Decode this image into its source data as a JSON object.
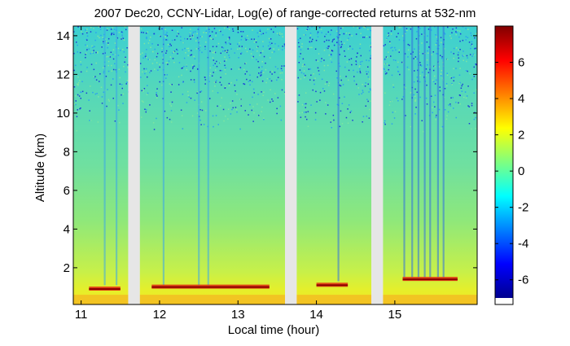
{
  "chart_data": {
    "type": "heatmap",
    "title": "2007 Dec20, CCNY-Lidar, Log(e) of range-corrected returns at 532-nm",
    "xlabel": "Local time (hour)",
    "ylabel": "Altitude (km)",
    "xlim": [
      10.9,
      16.05
    ],
    "ylim": [
      0.1,
      14.5
    ],
    "x_ticks": [
      "11",
      "12",
      "13",
      "14",
      "15"
    ],
    "x_tick_values": [
      11,
      12,
      13,
      14,
      15
    ],
    "y_ticks": [
      "2",
      "4",
      "6",
      "8",
      "10",
      "12",
      "14"
    ],
    "y_tick_values": [
      2,
      4,
      6,
      8,
      10,
      12,
      14
    ],
    "colorbar": {
      "colormap": "jet",
      "range": [
        -7,
        8
      ],
      "ticks": [
        "-6",
        "-4",
        "-2",
        "0",
        "2",
        "4",
        "6"
      ],
      "tick_values": [
        -6,
        -4,
        -2,
        0,
        2,
        4,
        6
      ]
    },
    "data_gaps": [
      [
        11.6,
        11.75
      ],
      [
        13.6,
        13.75
      ],
      [
        14.7,
        14.85
      ]
    ],
    "missing_color": "#e6e6e6",
    "observation_segments": [
      [
        10.9,
        11.6
      ],
      [
        11.75,
        13.6
      ],
      [
        13.75,
        14.7
      ],
      [
        14.85,
        16.05
      ]
    ],
    "cloud_top_km": [
      {
        "x": [
          11.1,
          11.5
        ],
        "altitude_km": 0.9
      },
      {
        "x": [
          11.9,
          13.4
        ],
        "altitude_km": 1.0
      },
      {
        "x": [
          14.0,
          14.4
        ],
        "altitude_km": 1.1
      },
      {
        "x": [
          15.1,
          15.8
        ],
        "altitude_km": 1.4
      }
    ]
  }
}
